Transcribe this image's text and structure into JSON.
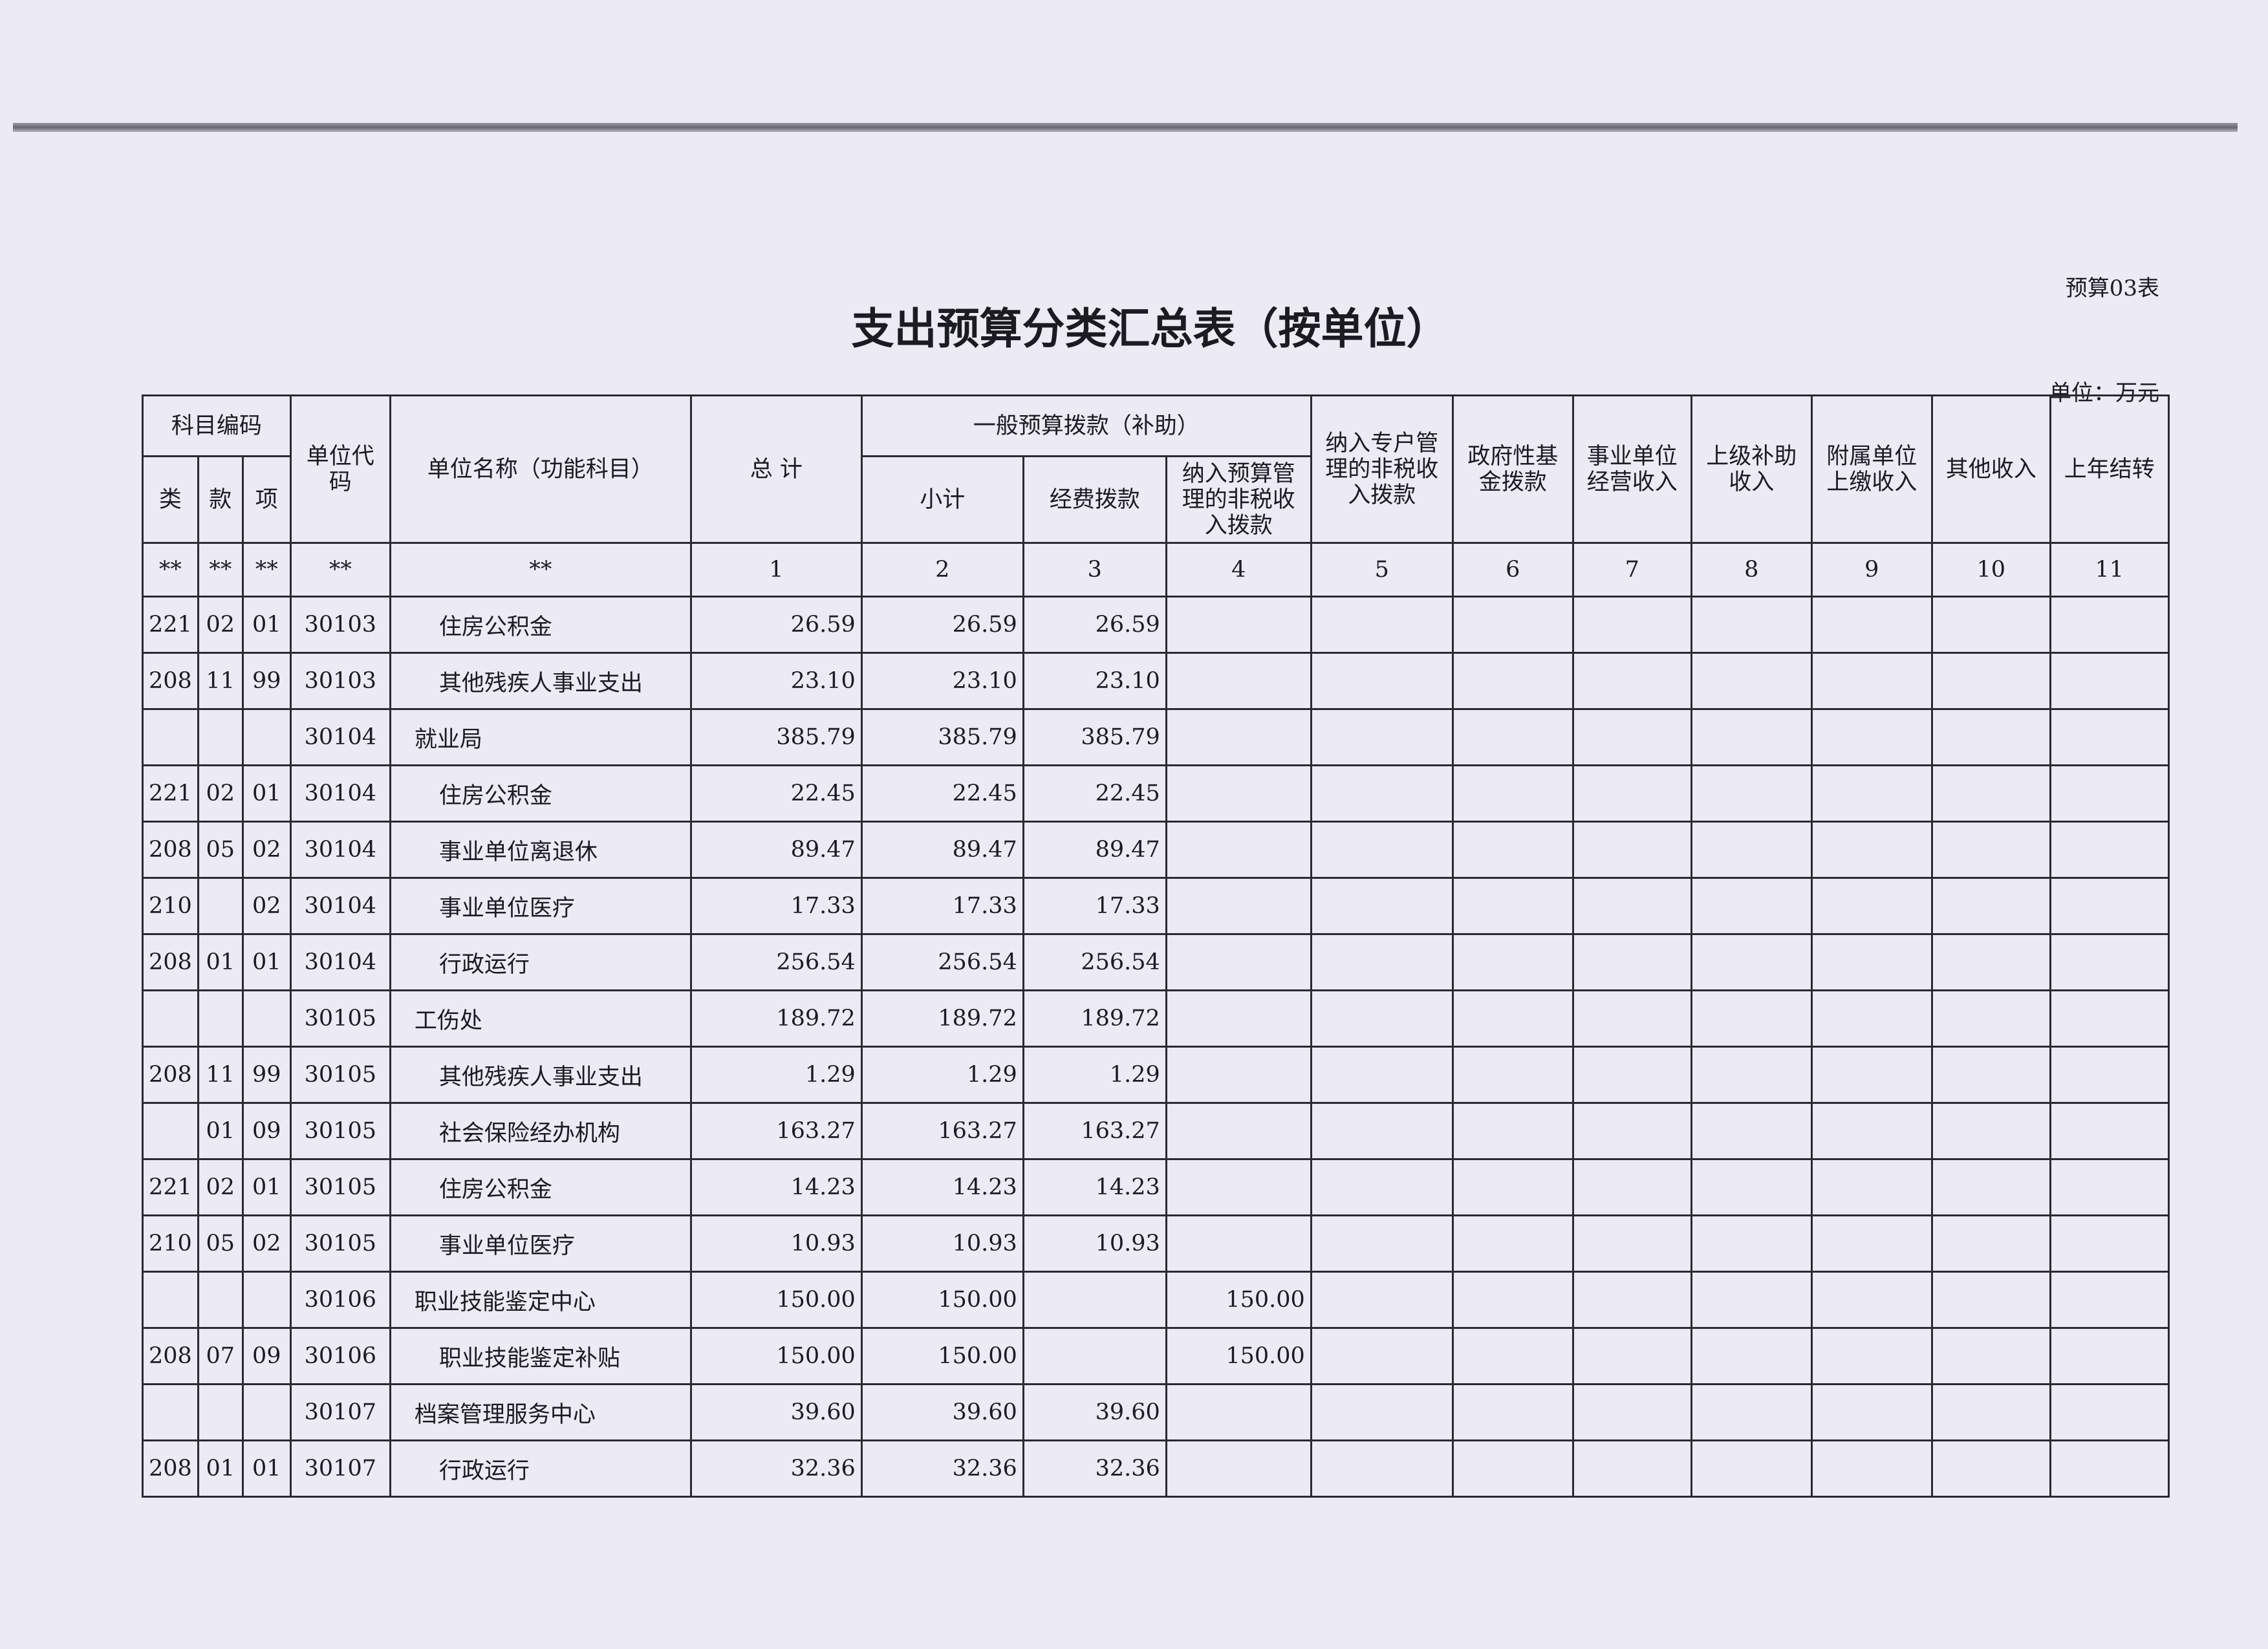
{
  "header": {
    "form_no": "预算03表",
    "title": "支出预算分类汇总表（按单位）",
    "unit": "单位：万元"
  },
  "table": {
    "header_groups": {
      "subject_code": "科目编码",
      "general_budget": "一般预算拨款（补助）"
    },
    "columns": [
      "类",
      "款",
      "项",
      "单位代码",
      "单位名称（功能科目）",
      "总 计",
      "小计",
      "经费拨款",
      "纳入预算管理的非税收入拨款",
      "纳入专户管理的非税收入拨款",
      "政府性基金拨款",
      "事业单位经营收入",
      "上级补助收入",
      "附属单位上缴收入",
      "其他收入",
      "上年结转"
    ],
    "column_numbers": [
      "**",
      "**",
      "**",
      "**",
      "**",
      "1",
      "2",
      "3",
      "4",
      "5",
      "6",
      "7",
      "8",
      "9",
      "10",
      "11"
    ],
    "rows": [
      [
        "221",
        "02",
        "01",
        "30103",
        "住房公积金",
        "26.59",
        "26.59",
        "26.59",
        null,
        null,
        null,
        null,
        null,
        null,
        null,
        null
      ],
      [
        "208",
        "11",
        "99",
        "30103",
        "其他残疾人事业支出",
        "23.10",
        "23.10",
        "23.10",
        null,
        null,
        null,
        null,
        null,
        null,
        null,
        null
      ],
      [
        null,
        null,
        null,
        "30104",
        "就业局",
        "385.79",
        "385.79",
        "385.79",
        null,
        null,
        null,
        null,
        null,
        null,
        null,
        null
      ],
      [
        "221",
        "02",
        "01",
        "30104",
        "住房公积金",
        "22.45",
        "22.45",
        "22.45",
        null,
        null,
        null,
        null,
        null,
        null,
        null,
        null
      ],
      [
        "208",
        "05",
        "02",
        "30104",
        "事业单位离退休",
        "89.47",
        "89.47",
        "89.47",
        null,
        null,
        null,
        null,
        null,
        null,
        null,
        null
      ],
      [
        "210",
        null,
        "02",
        "30104",
        "事业单位医疗",
        "17.33",
        "17.33",
        "17.33",
        null,
        null,
        null,
        null,
        null,
        null,
        null,
        null
      ],
      [
        "208",
        "01",
        "01",
        "30104",
        "行政运行",
        "256.54",
        "256.54",
        "256.54",
        null,
        null,
        null,
        null,
        null,
        null,
        null,
        null
      ],
      [
        null,
        null,
        null,
        "30105",
        "工伤处",
        "189.72",
        "189.72",
        "189.72",
        null,
        null,
        null,
        null,
        null,
        null,
        null,
        null
      ],
      [
        "208",
        "11",
        "99",
        "30105",
        "其他残疾人事业支出",
        "1.29",
        "1.29",
        "1.29",
        null,
        null,
        null,
        null,
        null,
        null,
        null,
        null
      ],
      [
        null,
        "01",
        "09",
        "30105",
        "社会保险经办机构",
        "163.27",
        "163.27",
        "163.27",
        null,
        null,
        null,
        null,
        null,
        null,
        null,
        null
      ],
      [
        "221",
        "02",
        "01",
        "30105",
        "住房公积金",
        "14.23",
        "14.23",
        "14.23",
        null,
        null,
        null,
        null,
        null,
        null,
        null,
        null
      ],
      [
        "210",
        "05",
        "02",
        "30105",
        "事业单位医疗",
        "10.93",
        "10.93",
        "10.93",
        null,
        null,
        null,
        null,
        null,
        null,
        null,
        null
      ],
      [
        null,
        null,
        null,
        "30106",
        "职业技能鉴定中心",
        "150.00",
        "150.00",
        null,
        "150.00",
        null,
        null,
        null,
        null,
        null,
        null,
        null
      ],
      [
        "208",
        "07",
        "09",
        "30106",
        "职业技能鉴定补贴",
        "150.00",
        "150.00",
        null,
        "150.00",
        null,
        null,
        null,
        null,
        null,
        null,
        null
      ],
      [
        null,
        null,
        null,
        "30107",
        "档案管理服务中心",
        "39.60",
        "39.60",
        "39.60",
        null,
        null,
        null,
        null,
        null,
        null,
        null,
        null
      ],
      [
        "208",
        "01",
        "01",
        "30107",
        "行政运行",
        "32.36",
        "32.36",
        "32.36",
        null,
        null,
        null,
        null,
        null,
        null,
        null,
        null
      ]
    ]
  }
}
